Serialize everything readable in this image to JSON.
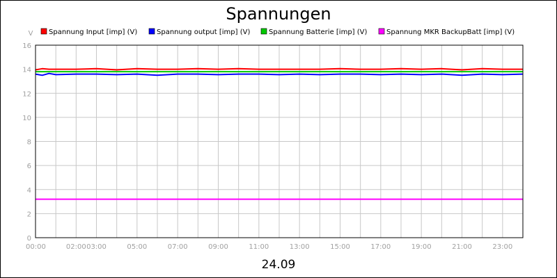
{
  "chart_data": {
    "type": "line",
    "title": "Spannungen",
    "ylabel": "V",
    "xlabel": "24.09",
    "ylim": [
      0,
      16
    ],
    "yticks": [
      0,
      2,
      4,
      6,
      8,
      10,
      12,
      14,
      16
    ],
    "xlim": [
      "00:00",
      "24:00"
    ],
    "xticks": [
      "00:00",
      "02:00",
      "03:00",
      "05:00",
      "07:00",
      "09:00",
      "11:00",
      "13:00",
      "15:00",
      "17:00",
      "19:00",
      "21:00",
      "23:00"
    ],
    "grid": true,
    "legend_position": "top",
    "series": [
      {
        "name": "Spannung Input [imp] (V)",
        "color": "#ff0000",
        "x": [
          "00:00",
          "00:20",
          "00:40",
          "01:00",
          "02:00",
          "03:00",
          "04:00",
          "05:00",
          "06:00",
          "07:00",
          "08:00",
          "09:00",
          "10:00",
          "11:00",
          "12:00",
          "13:00",
          "14:00",
          "15:00",
          "16:00",
          "17:00",
          "18:00",
          "19:00",
          "20:00",
          "21:00",
          "22:00",
          "23:00",
          "24:00"
        ],
        "values": [
          13.95,
          14.05,
          14.0,
          14.0,
          14.0,
          14.05,
          13.95,
          14.05,
          14.0,
          14.0,
          14.05,
          14.0,
          14.05,
          14.0,
          14.0,
          14.0,
          14.0,
          14.05,
          14.0,
          14.0,
          14.05,
          14.0,
          14.05,
          13.95,
          14.05,
          14.0,
          14.0
        ]
      },
      {
        "name": "Spannung output [imp] (V)",
        "color": "#0000ff",
        "x": [
          "00:00",
          "00:20",
          "00:40",
          "01:00",
          "02:00",
          "03:00",
          "04:00",
          "05:00",
          "06:00",
          "07:00",
          "08:00",
          "09:00",
          "10:00",
          "11:00",
          "12:00",
          "13:00",
          "14:00",
          "15:00",
          "16:00",
          "17:00",
          "18:00",
          "19:00",
          "20:00",
          "21:00",
          "22:00",
          "23:00",
          "24:00"
        ],
        "values": [
          13.6,
          13.5,
          13.65,
          13.55,
          13.6,
          13.6,
          13.55,
          13.6,
          13.5,
          13.6,
          13.6,
          13.55,
          13.6,
          13.6,
          13.55,
          13.6,
          13.55,
          13.6,
          13.6,
          13.55,
          13.6,
          13.55,
          13.6,
          13.5,
          13.6,
          13.55,
          13.6
        ]
      },
      {
        "name": "Spannung Batterie [imp] (V)",
        "color": "#00c800",
        "x": [
          "00:00",
          "00:20",
          "00:40",
          "01:00",
          "02:00",
          "03:00",
          "04:00",
          "05:00",
          "06:00",
          "07:00",
          "08:00",
          "09:00",
          "10:00",
          "11:00",
          "12:00",
          "13:00",
          "14:00",
          "15:00",
          "16:00",
          "17:00",
          "18:00",
          "19:00",
          "20:00",
          "21:00",
          "22:00",
          "23:00",
          "24:00"
        ],
        "values": [
          13.8,
          13.8,
          13.8,
          13.8,
          13.8,
          13.8,
          13.8,
          13.8,
          13.8,
          13.8,
          13.8,
          13.8,
          13.8,
          13.8,
          13.8,
          13.8,
          13.8,
          13.8,
          13.8,
          13.8,
          13.8,
          13.8,
          13.8,
          13.8,
          13.8,
          13.8,
          13.8
        ]
      },
      {
        "name": "Spannung MKR BackupBatt [imp] (V)",
        "color": "#ff00ff",
        "x": [
          "00:00",
          "24:00"
        ],
        "values": [
          3.2,
          3.2
        ]
      }
    ]
  }
}
